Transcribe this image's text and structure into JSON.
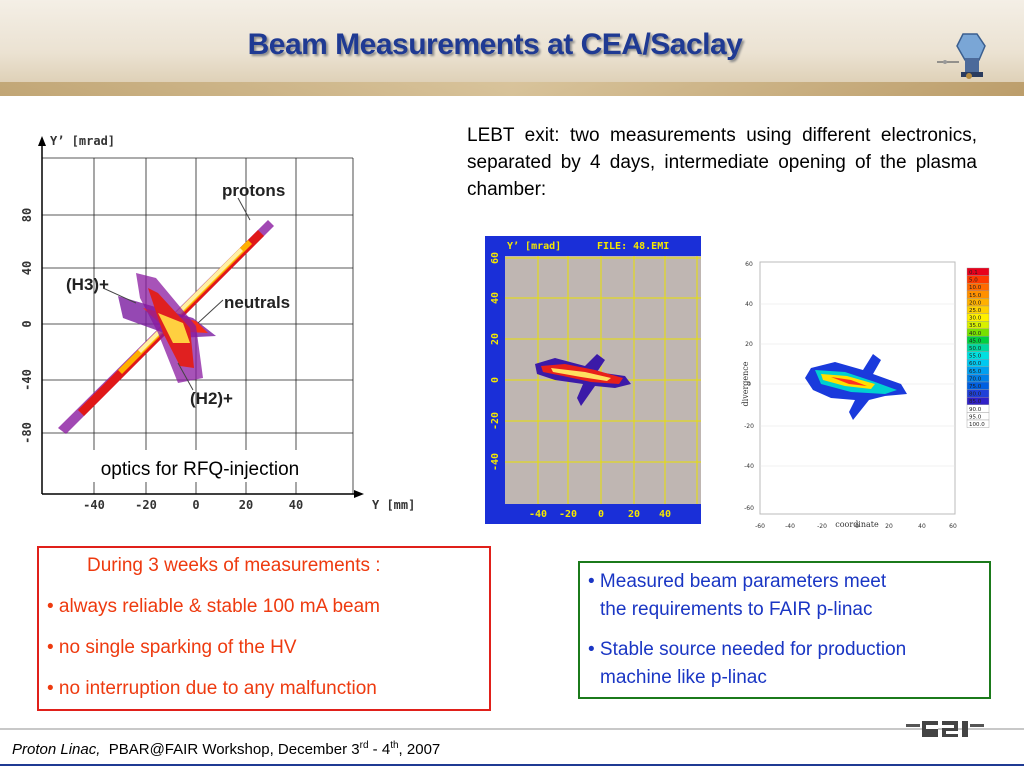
{
  "slide": {
    "title": "Beam Measurements at CEA/Saclay"
  },
  "left_plot": {
    "y_axis_label": "Y’ [mrad]",
    "x_axis_label": "Y [mm]",
    "y_ticks": [
      "80",
      "40",
      "0",
      "-40",
      "-80"
    ],
    "x_ticks": [
      "-40",
      "-20",
      "0",
      "20",
      "40"
    ],
    "labels": {
      "protons": "protons",
      "h3": "(H3)+",
      "neutrals": "neutrals",
      "h2": "(H2)+"
    },
    "caption": "optics for RFQ-injection"
  },
  "lebt_text": "LEBT exit: two measurements using different electronics, separated by 4 days, intermediate opening of the plasma chamber:",
  "mid_plot": {
    "y_axis_label": "Y’ [mrad]",
    "file_label": "FILE: 48.EMI",
    "y_ticks": [
      "60",
      "40",
      "20",
      "0",
      "-20",
      "-40"
    ],
    "x_ticks": [
      "-40",
      "-20",
      "0",
      "20",
      "40"
    ]
  },
  "right_plot": {
    "y_axis_label": "divergence",
    "x_axis_label": "coordinate",
    "y_ticks": [
      "60",
      "40",
      "20",
      "0",
      "-20",
      "-40",
      "-60"
    ],
    "x_ticks": [
      "-60",
      "-40",
      "-20",
      "0",
      "20",
      "40",
      "60"
    ],
    "legend": [
      "0.1",
      "5.0",
      "10.0",
      "15.0",
      "20.0",
      "25.0",
      "30.0",
      "35.0",
      "40.0",
      "45.0",
      "50.0",
      "55.0",
      "60.0",
      "65.0",
      "70.0",
      "75.0",
      "80.0",
      "85.0",
      "90.0",
      "95.0",
      "100.0"
    ],
    "legend_colors": [
      "#e8001c",
      "#ff3a00",
      "#ff6a00",
      "#ff9000",
      "#ffb000",
      "#ffd000",
      "#fff000",
      "#d8f000",
      "#78e000",
      "#00d040",
      "#00d8a0",
      "#00e0e0",
      "#00c8f0",
      "#00a0f0",
      "#0080e8",
      "#0060e0",
      "#2040d8",
      "#3020c8",
      "#ffffff",
      "#ffffff",
      "#ffffff"
    ]
  },
  "red_box": {
    "header": "During 3 weeks of measurements :",
    "items": [
      "• always reliable & stable 100 mA beam",
      "• no single sparking of the HV",
      "• no interruption due to any malfunction"
    ]
  },
  "green_box": {
    "items": [
      [
        "• Measured beam parameters meet",
        "the requirements to FAIR p-linac"
      ],
      [
        "• Stable source needed for production",
        "machine like p-linac"
      ]
    ]
  },
  "footer": {
    "italic": "Proton Linac,",
    "text_pre": "PBAR@FAIR Workshop, December 3",
    "sup1": "rd",
    "text_mid": " - 4",
    "sup2": "th",
    "text_post": ", 2007"
  },
  "logo": {
    "text": "GSI"
  }
}
